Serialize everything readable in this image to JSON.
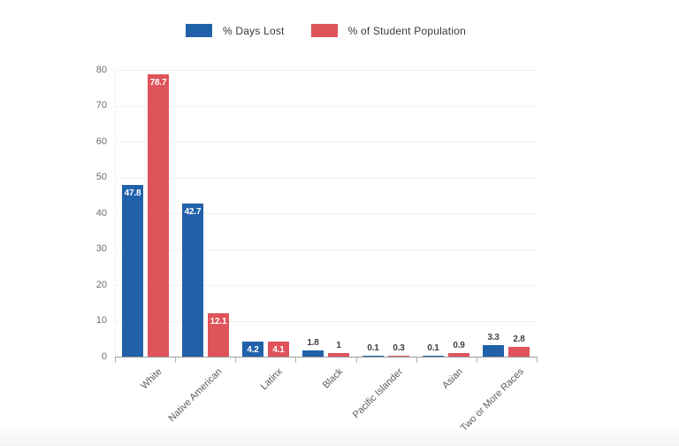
{
  "chart_data": {
    "type": "bar",
    "title": "",
    "categories": [
      "White",
      "Native American",
      "Latinx",
      "Black",
      "Pacific Islander",
      "Asian",
      "Two or More Races"
    ],
    "series": [
      {
        "name": "% Days Lost",
        "color": "#2161aa",
        "values": [
          47.8,
          42.7,
          4.2,
          1.8,
          0.1,
          0.1,
          3.3
        ],
        "labels": [
          "47.8",
          "42.7",
          "4.2",
          "1.8",
          "0.1",
          "0.1",
          "3.3"
        ]
      },
      {
        "name": "% of Student Population",
        "color": "#df535b",
        "values": [
          78.7,
          12.1,
          4.1,
          1,
          0.3,
          0.9,
          2.8
        ],
        "labels": [
          "78.7",
          "12.1",
          "4.1",
          "1",
          "0.3",
          "0.9",
          "2.8"
        ]
      }
    ],
    "xlabel": "",
    "ylabel": "",
    "ylim": [
      0,
      80
    ],
    "yticks": [
      0,
      10,
      20,
      30,
      40,
      50,
      60,
      70,
      80
    ],
    "grid": "horizontal-only",
    "legend_position": "top",
    "value_labels": "white inside tall bars, dark gray above short bars",
    "x_tick_label_rotation_deg": -45
  }
}
